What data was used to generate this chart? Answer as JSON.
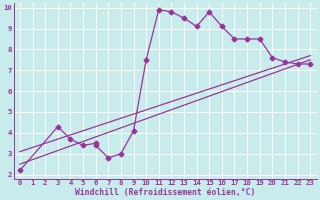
{
  "xlabel": "Windchill (Refroidissement éolien,°C)",
  "ylabel": "",
  "bg_color": "#c8ecec",
  "line_color": "#993399",
  "grid_color": "#ffffff",
  "xlim": [
    -0.5,
    23.5
  ],
  "ylim": [
    1.8,
    10.2
  ],
  "xticks": [
    0,
    1,
    2,
    3,
    4,
    5,
    6,
    7,
    8,
    9,
    10,
    11,
    12,
    13,
    14,
    15,
    16,
    17,
    18,
    19,
    20,
    21,
    22,
    23
  ],
  "yticks": [
    2,
    3,
    4,
    5,
    6,
    7,
    8,
    9,
    10
  ],
  "line1_x": [
    0,
    3,
    4,
    5,
    6,
    6,
    7,
    8,
    9,
    10,
    11,
    12,
    13,
    14,
    15,
    16,
    17,
    18,
    19,
    20,
    21,
    22,
    23
  ],
  "line1_y": [
    2.2,
    4.3,
    3.7,
    3.4,
    3.5,
    3.4,
    2.8,
    3.0,
    4.1,
    7.5,
    9.9,
    9.8,
    9.5,
    9.1,
    9.8,
    9.1,
    8.5,
    8.5,
    8.5,
    7.6,
    7.4,
    7.3,
    7.3
  ],
  "line2_x": [
    0,
    23
  ],
  "line2_y": [
    2.5,
    7.5
  ],
  "line3_x": [
    0,
    23
  ],
  "line3_y": [
    3.1,
    7.7
  ],
  "marker": "D",
  "markersize": 2.5,
  "linewidth": 0.9,
  "xlabel_fontsize": 5.8,
  "tick_fontsize": 5.2
}
